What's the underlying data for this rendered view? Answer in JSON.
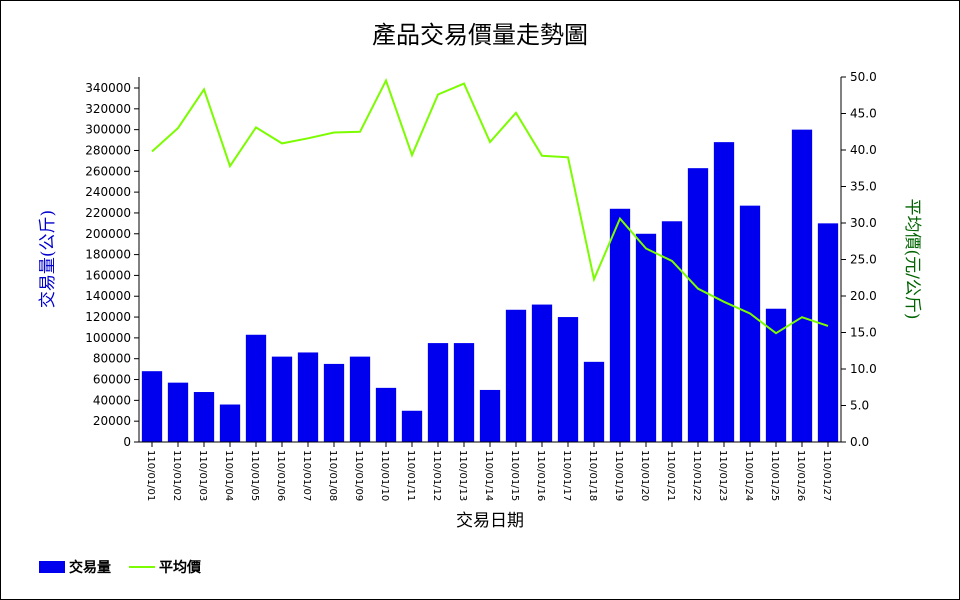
{
  "chart_data": {
    "type": "bar+line",
    "title": "產品交易價量走勢圖",
    "xlabel": "交易日期",
    "ylabel_left": "交易量(公斤)",
    "ylabel_right": "平均價(元/公斤)",
    "categories": [
      "110/01/01",
      "110/01/02",
      "110/01/03",
      "110/01/04",
      "110/01/05",
      "110/01/06",
      "110/01/07",
      "110/01/08",
      "110/01/09",
      "110/01/10",
      "110/01/11",
      "110/01/12",
      "110/01/13",
      "110/01/14",
      "110/01/15",
      "110/01/16",
      "110/01/17",
      "110/01/18",
      "110/01/19",
      "110/01/20",
      "110/01/21",
      "110/01/22",
      "110/01/23",
      "110/01/24",
      "110/01/25",
      "110/01/26",
      "110/01/27"
    ],
    "series": [
      {
        "name": "交易量",
        "type": "bar",
        "axis": "left",
        "color": "#0000ee",
        "values": [
          68000,
          57000,
          48000,
          36000,
          103000,
          82000,
          86000,
          75000,
          82000,
          52000,
          30000,
          95000,
          95000,
          50000,
          127000,
          132000,
          120000,
          77000,
          224000,
          200000,
          212000,
          263000,
          288000,
          227000,
          128000,
          300000,
          210000
        ]
      },
      {
        "name": "平均價",
        "type": "line",
        "axis": "right",
        "color": "#7cfc00",
        "values": [
          39.8,
          43.0,
          48.3,
          37.8,
          43.1,
          40.9,
          41.6,
          42.4,
          42.5,
          49.5,
          39.3,
          47.6,
          49.1,
          41.1,
          45.1,
          39.2,
          39.0,
          22.3,
          30.6,
          26.5,
          24.8,
          21.0,
          19.2,
          17.6,
          14.9,
          17.1,
          15.9
        ]
      }
    ],
    "ylim_left": [
      0,
      340000
    ],
    "yticks_left": [
      0,
      20000,
      40000,
      60000,
      80000,
      100000,
      120000,
      140000,
      160000,
      180000,
      200000,
      220000,
      240000,
      260000,
      280000,
      300000,
      320000,
      340000
    ],
    "ylim_right": [
      0,
      50
    ],
    "yticks_right": [
      "0.0",
      "5.0",
      "10.0",
      "15.0",
      "20.0",
      "25.0",
      "30.0",
      "35.0",
      "40.0",
      "45.0",
      "50.0"
    ],
    "legend_position": "bottom-left",
    "grid": false
  },
  "colors": {
    "left_axis_title": "#0000cc",
    "right_axis_title": "#006400"
  }
}
